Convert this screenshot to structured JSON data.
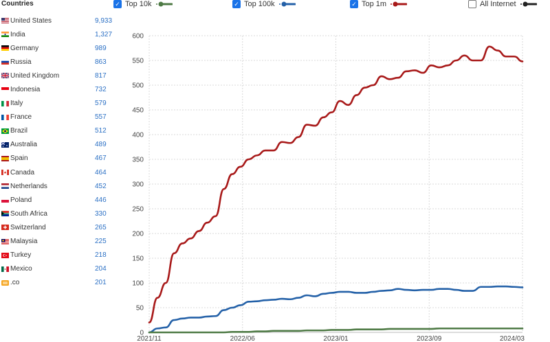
{
  "sidebar": {
    "title": "Countries",
    "items": [
      {
        "name": "United States",
        "count": "9,933",
        "flag": "us"
      },
      {
        "name": "India",
        "count": "1,327",
        "flag": "in"
      },
      {
        "name": "Germany",
        "count": "989",
        "flag": "de"
      },
      {
        "name": "Russia",
        "count": "863",
        "flag": "ru"
      },
      {
        "name": "United Kingdom",
        "count": "817",
        "flag": "gb"
      },
      {
        "name": "Indonesia",
        "count": "732",
        "flag": "id"
      },
      {
        "name": "Italy",
        "count": "579",
        "flag": "it"
      },
      {
        "name": "France",
        "count": "557",
        "flag": "fr"
      },
      {
        "name": "Brazil",
        "count": "512",
        "flag": "br"
      },
      {
        "name": "Australia",
        "count": "489",
        "flag": "au"
      },
      {
        "name": "Spain",
        "count": "467",
        "flag": "es"
      },
      {
        "name": "Canada",
        "count": "464",
        "flag": "ca"
      },
      {
        "name": "Netherlands",
        "count": "452",
        "flag": "nl"
      },
      {
        "name": "Poland",
        "count": "446",
        "flag": "pl"
      },
      {
        "name": "South Africa",
        "count": "330",
        "flag": "za"
      },
      {
        "name": "Switzerland",
        "count": "265",
        "flag": "ch"
      },
      {
        "name": "Malaysia",
        "count": "225",
        "flag": "my"
      },
      {
        "name": "Turkey",
        "count": "218",
        "flag": "tr"
      },
      {
        "name": "Mexico",
        "count": "204",
        "flag": "mx"
      },
      {
        "name": ".co",
        "count": "201",
        "flag": "co-tld"
      }
    ]
  },
  "legend": [
    {
      "label": "Top 10k",
      "checked": true,
      "color": "#4e7a45"
    },
    {
      "label": "Top 100k",
      "checked": true,
      "color": "#2461a8"
    },
    {
      "label": "Top 1m",
      "checked": true,
      "color": "#a81919"
    },
    {
      "label": "All Internet",
      "checked": false,
      "color": "#222222"
    }
  ],
  "chart_data": {
    "type": "line",
    "x_ticks": [
      "2021/11",
      "2022/06",
      "2023/01",
      "2023/09",
      "2024/03"
    ],
    "ylim": [
      0,
      600
    ],
    "y_ticks": [
      0,
      50,
      100,
      150,
      200,
      250,
      300,
      350,
      400,
      450,
      500,
      550,
      600
    ],
    "grid": true,
    "series": [
      {
        "name": "Top 1m",
        "color": "#a81919",
        "values": [
          20,
          70,
          100,
          160,
          180,
          190,
          205,
          222,
          235,
          290,
          320,
          335,
          350,
          358,
          368,
          368,
          385,
          383,
          395,
          420,
          418,
          435,
          445,
          468,
          460,
          480,
          495,
          500,
          518,
          512,
          515,
          528,
          530,
          525,
          540,
          536,
          540,
          550,
          560,
          550,
          550,
          578,
          570,
          558,
          558,
          548
        ]
      },
      {
        "name": "Top 100k",
        "color": "#2461a8",
        "values": [
          0,
          8,
          10,
          25,
          28,
          30,
          30,
          32,
          33,
          45,
          50,
          55,
          62,
          63,
          65,
          66,
          68,
          67,
          70,
          75,
          73,
          78,
          80,
          82,
          82,
          80,
          80,
          82,
          84,
          85,
          88,
          86,
          85,
          86,
          86,
          88,
          88,
          86,
          84,
          84,
          92,
          92,
          93,
          93,
          92,
          91
        ]
      },
      {
        "name": "Top 10k",
        "color": "#4e7a45",
        "values": [
          0,
          0,
          0,
          0,
          0,
          0,
          0,
          0,
          0,
          0,
          1,
          1,
          1,
          2,
          2,
          3,
          3,
          3,
          3,
          4,
          4,
          4,
          5,
          5,
          5,
          6,
          6,
          6,
          6,
          7,
          7,
          7,
          7,
          7,
          7,
          8,
          8,
          8,
          8,
          8,
          8,
          8,
          8,
          8,
          8,
          8
        ]
      }
    ]
  }
}
